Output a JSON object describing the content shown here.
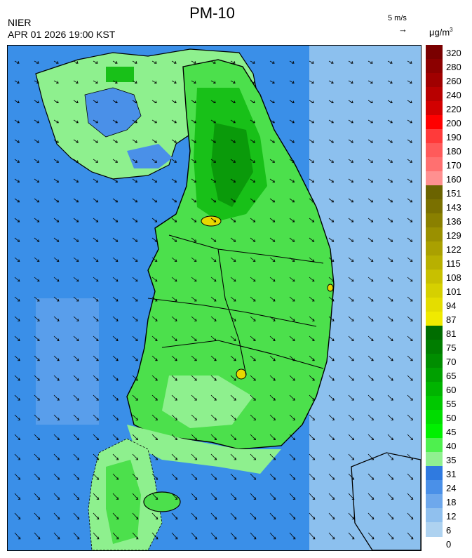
{
  "header": {
    "title": "PM-10",
    "agency": "NIER",
    "datetime": "APR 01 2026 19:00 KST",
    "wind_reference": "5 m/s",
    "wind_reference_arrow": "→",
    "unit_base": "μg/m",
    "unit_exp": "3"
  },
  "legend": {
    "ticks": [
      "320",
      "280",
      "260",
      "240",
      "220",
      "200",
      "190",
      "180",
      "170",
      "160",
      "151",
      "143",
      "136",
      "129",
      "122",
      "115",
      "108",
      "101",
      "94",
      "87",
      "81",
      "75",
      "70",
      "65",
      "60",
      "55",
      "50",
      "45",
      "40",
      "35",
      "31",
      "24",
      "18",
      "12",
      "6",
      "0"
    ],
    "colors": [
      "#7a0000",
      "#8c0000",
      "#a00000",
      "#b80000",
      "#d20000",
      "#ff0000",
      "#ff3a3a",
      "#ff5a5a",
      "#ff7070",
      "#ff9090",
      "#6b6300",
      "#7a7000",
      "#8a8000",
      "#9a9000",
      "#aaa000",
      "#b8b000",
      "#c8c000",
      "#d6d000",
      "#e4dd00",
      "#f0ea00",
      "#006d00",
      "#007d00",
      "#008d00",
      "#00a000",
      "#00b400",
      "#00c800",
      "#00dc00",
      "#00f000",
      "#4ef04e",
      "#90f090",
      "#2f7ae0",
      "#4a90e8",
      "#6ea8ec",
      "#90c0ee",
      "#aed2f0"
    ]
  },
  "map": {
    "regions": [
      "ocean",
      "north-korea",
      "south-korea",
      "jeju-island",
      "japan"
    ],
    "colors": {
      "ocean_deep": "#3a8fe8",
      "ocean_light": "#8cc0ee",
      "land_low": "#8ef08e",
      "land_mid": "#4ce04c",
      "land_high": "#18c018",
      "land_peak": "#0a9a0a",
      "hotspot": "#e8d800"
    }
  }
}
